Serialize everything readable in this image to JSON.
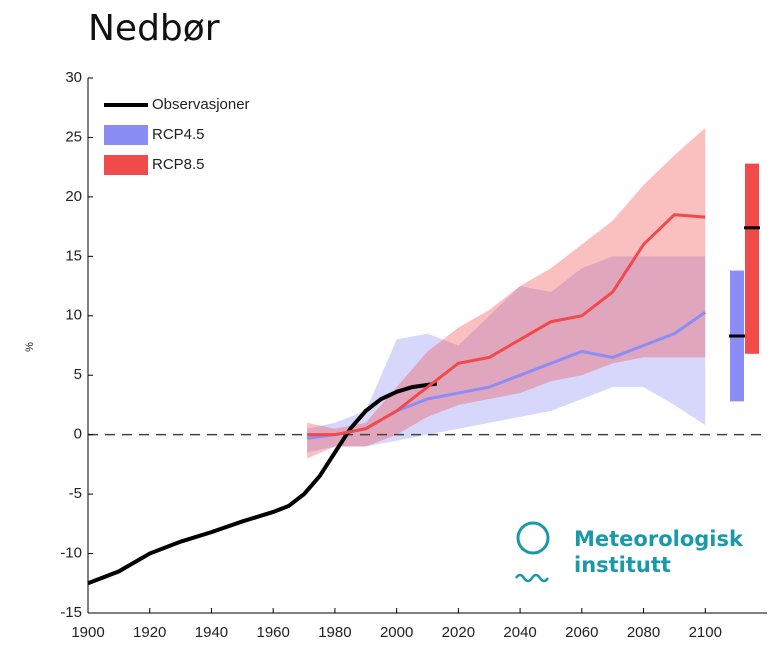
{
  "chart_data": {
    "type": "line",
    "title": "Nedbør",
    "y_label": "%",
    "xlim": [
      1900,
      2120
    ],
    "ylim": [
      -15,
      30
    ],
    "xticks": [
      1900,
      1920,
      1940,
      1960,
      1980,
      2000,
      2020,
      2040,
      2060,
      2080,
      2100
    ],
    "yticks": [
      -15,
      -10,
      -5,
      0,
      5,
      10,
      15,
      20,
      25,
      30
    ],
    "reference_line": 0,
    "legend": "top-left",
    "series": [
      {
        "name": "Observasjoner",
        "color": "#000000",
        "x": [
          1900,
          1910,
          1920,
          1930,
          1940,
          1950,
          1960,
          1965,
          1970,
          1975,
          1980,
          1985,
          1990,
          1995,
          2000,
          2005,
          2013
        ],
        "values": [
          -12.5,
          -11.5,
          -10,
          -9,
          -8.2,
          -7.3,
          -6.5,
          -6,
          -5,
          -3.5,
          -1.5,
          0.5,
          2,
          3,
          3.6,
          4,
          4.3
        ]
      },
      {
        "name": "RCP4.5",
        "color": "#8c8cf5",
        "x": [
          1971,
          1980,
          1990,
          2000,
          2010,
          2020,
          2030,
          2040,
          2050,
          2060,
          2070,
          2080,
          2090,
          2100
        ],
        "values": [
          -0.3,
          0,
          0.5,
          2,
          3,
          3.5,
          4,
          5,
          6,
          7,
          6.5,
          7.5,
          8.5,
          10.3
        ],
        "lower": [
          -1.5,
          -1,
          -1,
          -0.5,
          0,
          0.5,
          1,
          1.5,
          2,
          3,
          4,
          4,
          2.5,
          0.8
        ],
        "upper": [
          0.5,
          1,
          2,
          8,
          8.5,
          7.5,
          10,
          12.5,
          12,
          14,
          15,
          15,
          15,
          15
        ],
        "range_2100": {
          "low": 2.8,
          "median": 8.3,
          "high": 13.8
        }
      },
      {
        "name": "RCP8.5",
        "color": "#f04a4a",
        "x": [
          1971,
          1980,
          1990,
          2000,
          2010,
          2020,
          2030,
          2040,
          2050,
          2060,
          2070,
          2080,
          2090,
          2100
        ],
        "values": [
          0,
          0,
          0.5,
          2,
          4,
          6,
          6.5,
          8,
          9.5,
          10,
          12,
          16,
          18.5,
          18.3
        ],
        "lower": [
          -2,
          -1,
          -1,
          0,
          1.5,
          2.5,
          3,
          3.5,
          4.5,
          5,
          6,
          6.5,
          6.5,
          6.5
        ],
        "upper": [
          1,
          0.5,
          1,
          4,
          7,
          9,
          10.5,
          12.5,
          14,
          16,
          18,
          21,
          23.5,
          25.8
        ],
        "range_2100": {
          "low": 6.8,
          "median": 17.4,
          "high": 22.8
        }
      }
    ],
    "annotations": [
      "Meteorologisk",
      "institutt"
    ]
  }
}
